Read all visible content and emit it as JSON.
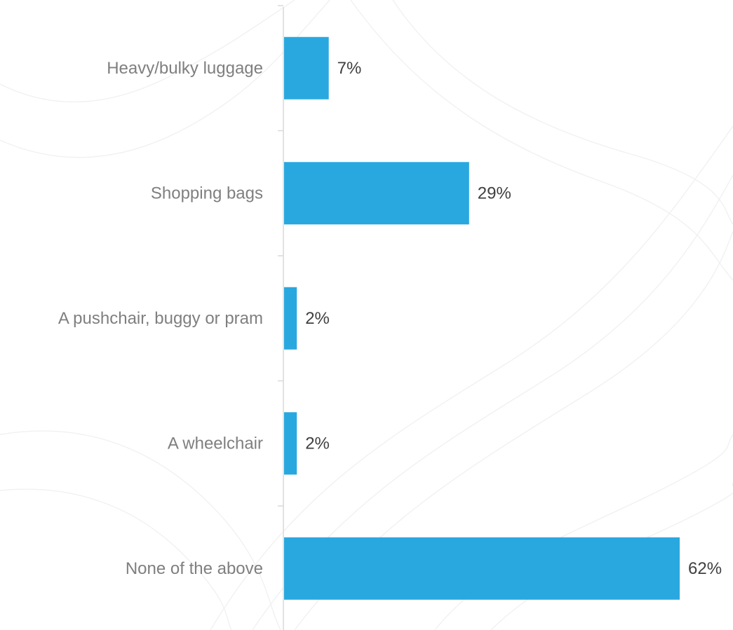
{
  "chart_data": {
    "type": "bar",
    "orientation": "horizontal",
    "title": "",
    "xlabel": "",
    "ylabel": "",
    "categories": [
      "Heavy/bulky luggage",
      "Shopping bags",
      "A pushchair, buggy or pram",
      "A wheelchair",
      "None of the above"
    ],
    "values": [
      7,
      29,
      2,
      2,
      62
    ],
    "value_labels": [
      "7%",
      "29%",
      "2%",
      "2%",
      "62%"
    ],
    "unit": "%",
    "xlim": [
      0,
      62
    ],
    "grid": false,
    "legend": "none",
    "colors": {
      "bar": "#29A8E0",
      "axis": "#D9D9D9",
      "category_text": "#7F7F7F",
      "value_text": "#404040"
    }
  }
}
